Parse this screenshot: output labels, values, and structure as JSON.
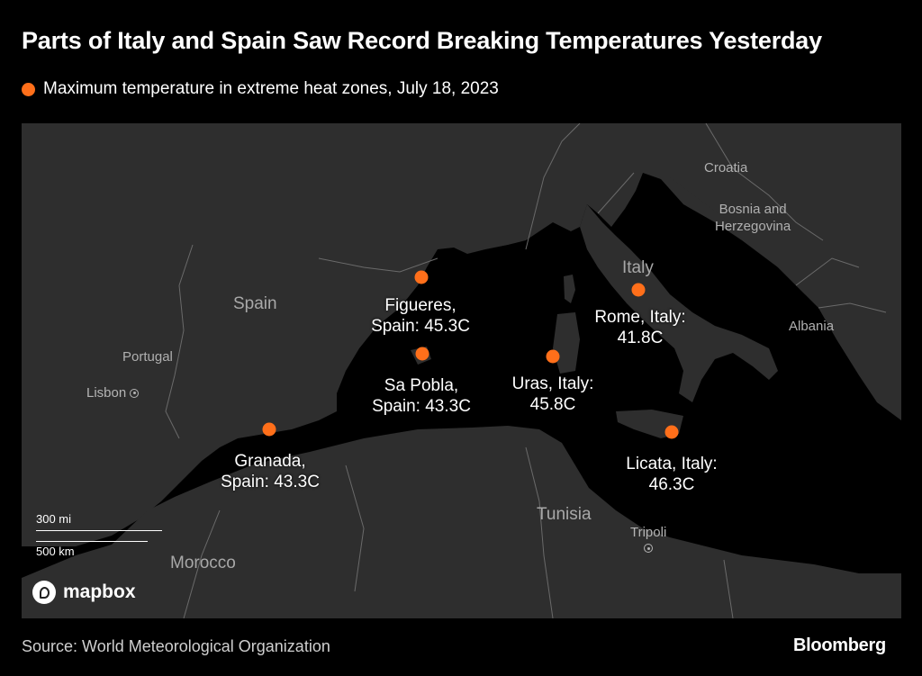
{
  "header": {
    "title": "Parts of Italy and Spain Saw Record Breaking Temperatures Yesterday",
    "legend_label": "Maximum temperature in extreme heat zones, July 18, 2023",
    "legend_color": "#ff6f1a"
  },
  "map": {
    "countries": {
      "spain": "Spain",
      "portugal": "Portugal",
      "italy": "Italy",
      "croatia": "Croatia",
      "bosnia_line1": "Bosnia and",
      "bosnia_line2": "Herzegovina",
      "albania": "Albania",
      "tunisia": "Tunisia",
      "morocco": "Morocco"
    },
    "cities": {
      "lisbon": "Lisbon",
      "tripoli": "Tripoli"
    },
    "markers": [
      {
        "place": "Figueres,",
        "value": "Spain: 45.3C"
      },
      {
        "place": "Sa Pobla,",
        "value": "Spain: 43.3C"
      },
      {
        "place": "Granada,",
        "value": "Spain: 43.3C"
      },
      {
        "place": "Uras, Italy:",
        "value": "45.8C"
      },
      {
        "place": "Rome, Italy:",
        "value": "41.8C"
      },
      {
        "place": "Licata, Italy:",
        "value": "46.3C"
      }
    ],
    "scale": {
      "miles": "300 mi",
      "km": "500 km"
    },
    "attribution": "mapbox"
  },
  "footer": {
    "source": "Source: World Meteorological Organization",
    "brand": "Bloomberg"
  }
}
